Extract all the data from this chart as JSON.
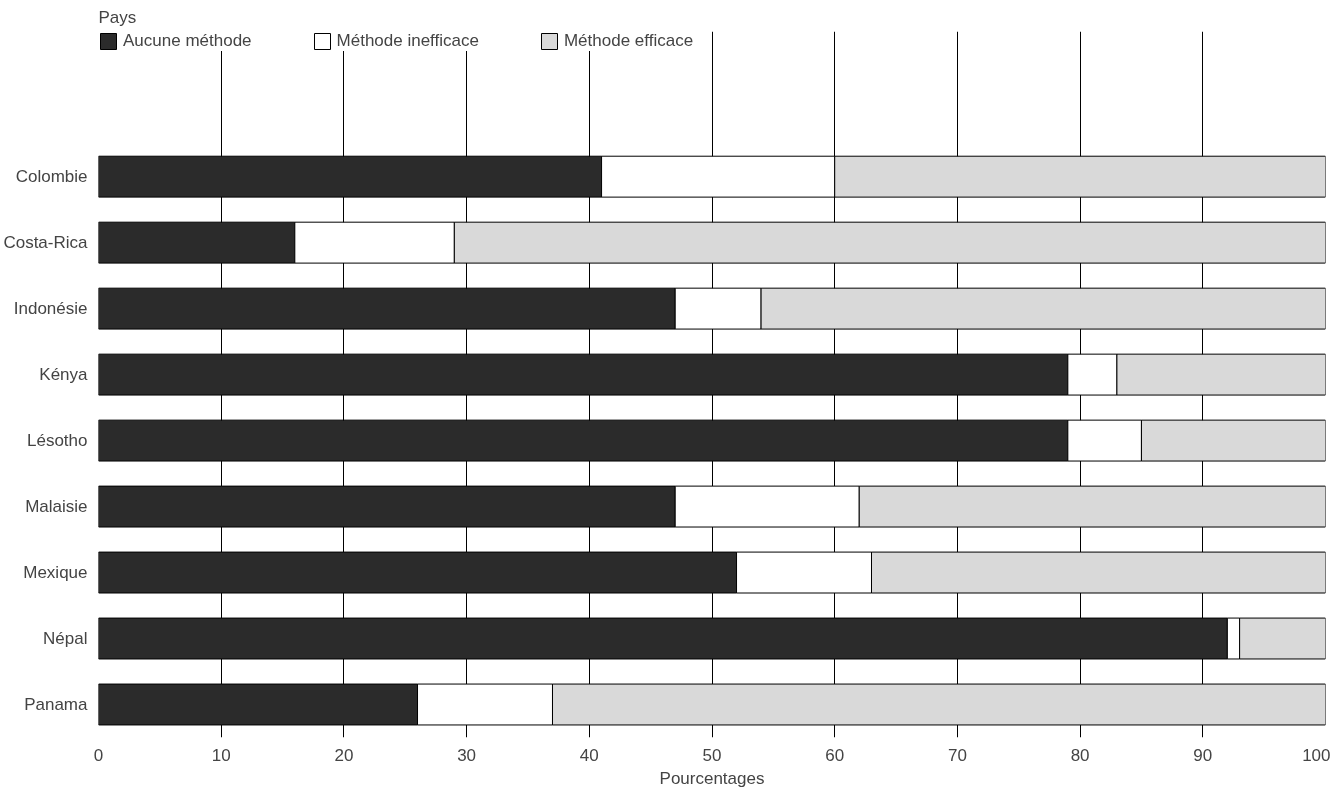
{
  "chart_data": {
    "type": "bar",
    "orientation": "horizontal",
    "stacked": true,
    "annotations": [
      "Pays"
    ],
    "xlabel": "Pourcentages",
    "categories": [
      "Colombie",
      "Costa-Rica",
      "Indonésie",
      "Kénya",
      "Lésotho",
      "Malaisie",
      "Mexique",
      "Népal",
      "Panama"
    ],
    "series": [
      {
        "name": "Aucune méthode",
        "color": "#2b2b2b",
        "values": [
          41,
          16,
          47,
          79,
          79,
          47,
          52,
          92,
          26
        ]
      },
      {
        "name": "Méthode inefficace",
        "color": "#ffffff",
        "values": [
          19,
          13,
          7,
          4,
          6,
          15,
          11,
          1,
          11
        ]
      },
      {
        "name": "Méthode efficace",
        "color": "#d9d9d9",
        "values": [
          40,
          71,
          46,
          17,
          15,
          38,
          37,
          7,
          63
        ]
      }
    ],
    "xlim": [
      0,
      100
    ],
    "xticks": [
      0,
      10,
      20,
      30,
      40,
      50,
      60,
      70,
      80,
      90,
      100
    ],
    "grid": "x",
    "legend": "top left"
  }
}
